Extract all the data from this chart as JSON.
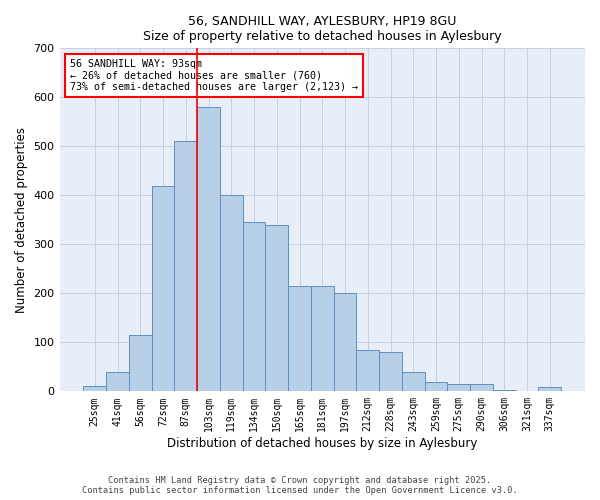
{
  "title_line1": "56, SANDHILL WAY, AYLESBURY, HP19 8GU",
  "title_line2": "Size of property relative to detached houses in Aylesbury",
  "xlabel": "Distribution of detached houses by size in Aylesbury",
  "ylabel": "Number of detached properties",
  "categories": [
    "25sqm",
    "41sqm",
    "56sqm",
    "72sqm",
    "87sqm",
    "103sqm",
    "119sqm",
    "134sqm",
    "150sqm",
    "165sqm",
    "181sqm",
    "197sqm",
    "212sqm",
    "228sqm",
    "243sqm",
    "259sqm",
    "275sqm",
    "290sqm",
    "306sqm",
    "321sqm",
    "337sqm"
  ],
  "values": [
    10,
    40,
    115,
    420,
    510,
    580,
    400,
    345,
    340,
    215,
    215,
    200,
    85,
    80,
    40,
    20,
    15,
    15,
    3,
    0,
    8
  ],
  "bar_color": "#b8cfe8",
  "bar_edge_color": "#6090c0",
  "vline_color": "red",
  "vline_x": 4.5,
  "annotation_text": "56 SANDHILL WAY: 93sqm\n← 26% of detached houses are smaller (760)\n73% of semi-detached houses are larger (2,123) →",
  "bg_color": "#e8eef8",
  "grid_color": "#c5d0e0",
  "ylim": [
    0,
    700
  ],
  "yticks": [
    0,
    100,
    200,
    300,
    400,
    500,
    600,
    700
  ],
  "footer_line1": "Contains HM Land Registry data © Crown copyright and database right 2025.",
  "footer_line2": "Contains public sector information licensed under the Open Government Licence v3.0."
}
